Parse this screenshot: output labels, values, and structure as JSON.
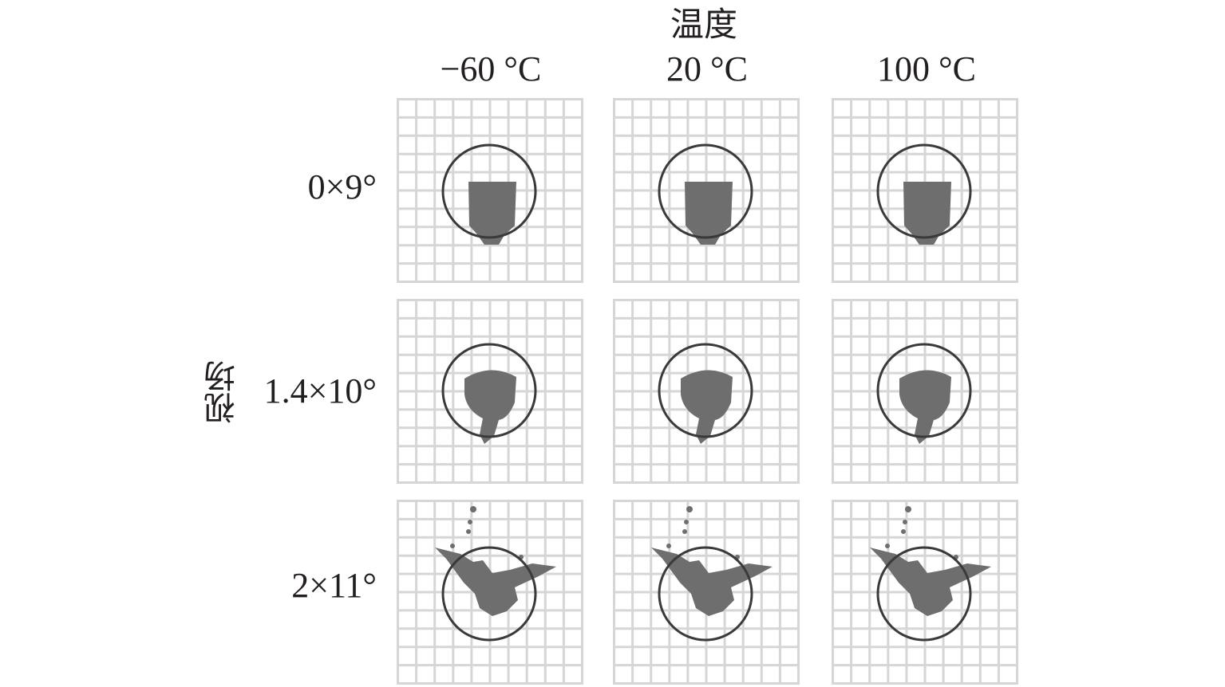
{
  "title": "温度",
  "y_title": "视场",
  "columns": [
    "−60 °C",
    "20 °C",
    "100 °C"
  ],
  "rows": [
    "0×9°",
    "1.4×10°",
    "2×11°"
  ],
  "colors": {
    "grid": "#d6d6d6",
    "circle": "#3a3a3a",
    "spot": "#6e6e6e",
    "text": "#231f20"
  }
}
